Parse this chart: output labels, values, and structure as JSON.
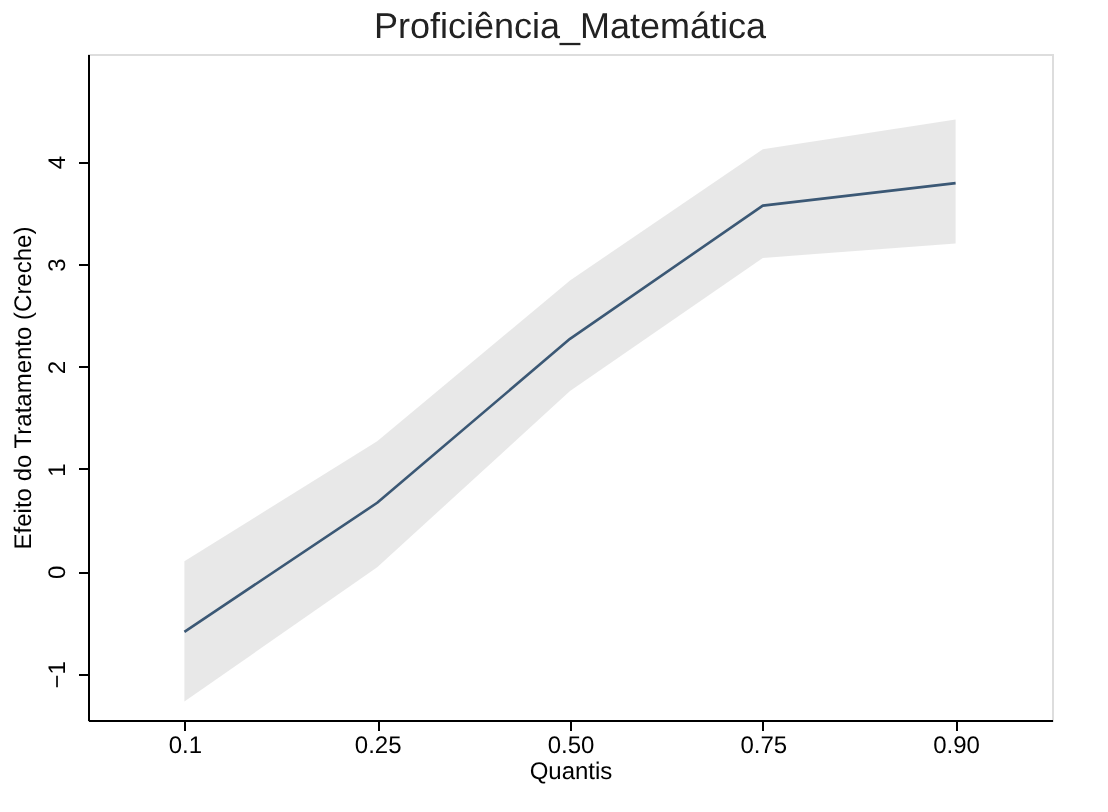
{
  "chart_data": {
    "type": "line",
    "title": "Proficiência_Matemática",
    "xlabel": "Quantis",
    "ylabel": "Efeito do Tratamento (Creche)",
    "categories": [
      "0.1",
      "0.25",
      "0.50",
      "0.75",
      "0.90"
    ],
    "series": [
      {
        "color": "#3b5875",
        "values": [
          -0.59,
          0.67,
          2.27,
          3.57,
          3.79
        ],
        "lower": [
          -1.27,
          0.04,
          1.76,
          3.06,
          3.2
        ],
        "upper": [
          0.1,
          1.27,
          2.84,
          4.12,
          4.41
        ]
      }
    ],
    "ylim": [
      -1.45,
      5.05
    ],
    "yticks": [
      -1,
      0,
      1,
      2,
      3,
      4
    ],
    "grid": false,
    "marker": "none",
    "line_style": "solid"
  }
}
